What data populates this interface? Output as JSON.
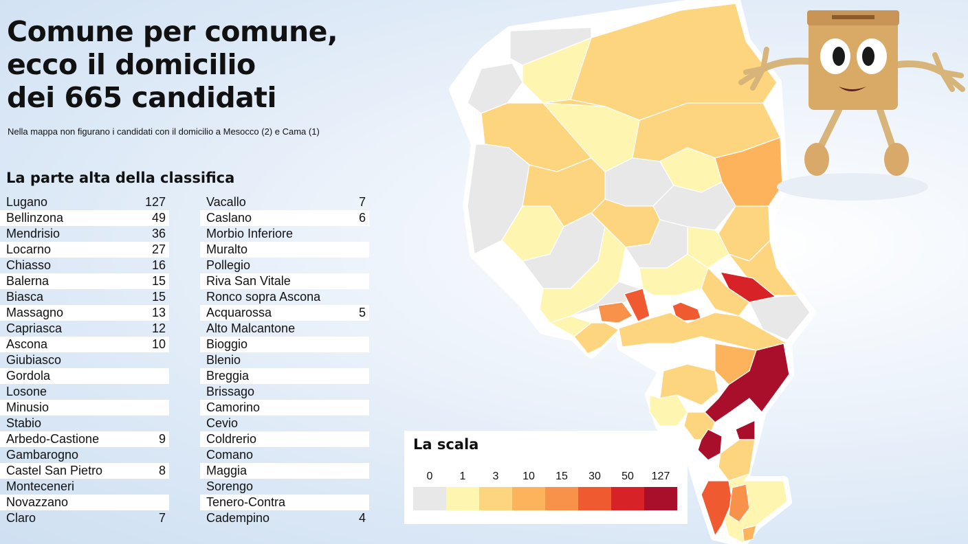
{
  "title_lines": [
    "Comune per comune,",
    "ecco il domicilio",
    "dei 665 candidati"
  ],
  "subtitle": "Nella mappa non figurano i candidati con il domicilio a Mesocco (2) e Cama (1)",
  "ranking_title": "La parte alta della classifica",
  "ranking_left": [
    {
      "name": "Lugano",
      "value": "127"
    },
    {
      "name": "Bellinzona",
      "value": "49"
    },
    {
      "name": "Mendrisio",
      "value": "36"
    },
    {
      "name": "Locarno",
      "value": "27"
    },
    {
      "name": "Chiasso",
      "value": "16"
    },
    {
      "name": "Balerna",
      "value": "15"
    },
    {
      "name": "Biasca",
      "value": "15"
    },
    {
      "name": "Massagno",
      "value": "13"
    },
    {
      "name": "Capriasca",
      "value": "12"
    },
    {
      "name": "Ascona",
      "value": "10"
    },
    {
      "name": "Giubiasco",
      "value": ""
    },
    {
      "name": "Gordola",
      "value": ""
    },
    {
      "name": "Losone",
      "value": ""
    },
    {
      "name": "Minusio",
      "value": ""
    },
    {
      "name": "Stabio",
      "value": ""
    },
    {
      "name": "Arbedo-Castione",
      "value": "9"
    },
    {
      "name": "Gambarogno",
      "value": ""
    },
    {
      "name": "Castel San Pietro",
      "value": "8"
    },
    {
      "name": "Monteceneri",
      "value": ""
    },
    {
      "name": "Novazzano",
      "value": ""
    },
    {
      "name": "Claro",
      "value": "7"
    }
  ],
  "ranking_right": [
    {
      "name": "Vacallo",
      "value": "7"
    },
    {
      "name": "Caslano",
      "value": "6"
    },
    {
      "name": "Morbio Inferiore",
      "value": ""
    },
    {
      "name": "Muralto",
      "value": ""
    },
    {
      "name": "Pollegio",
      "value": ""
    },
    {
      "name": "Riva San Vitale",
      "value": ""
    },
    {
      "name": "Ronco sopra Ascona",
      "value": ""
    },
    {
      "name": "Acquarossa",
      "value": "5"
    },
    {
      "name": "Alto Malcantone",
      "value": ""
    },
    {
      "name": "Bioggio",
      "value": ""
    },
    {
      "name": "Blenio",
      "value": ""
    },
    {
      "name": "Breggia",
      "value": ""
    },
    {
      "name": "Brissago",
      "value": ""
    },
    {
      "name": "Camorino",
      "value": ""
    },
    {
      "name": "Cevio",
      "value": ""
    },
    {
      "name": "Coldrerio",
      "value": ""
    },
    {
      "name": "Comano",
      "value": ""
    },
    {
      "name": "Maggia",
      "value": ""
    },
    {
      "name": "Sorengo",
      "value": ""
    },
    {
      "name": "Tenero-Contra",
      "value": ""
    },
    {
      "name": "Cadempino",
      "value": "4"
    }
  ],
  "legend": {
    "title": "La scala",
    "steps": [
      {
        "label": "0",
        "color": "#e8e8e8"
      },
      {
        "label": "1",
        "color": "#fef6b0"
      },
      {
        "label": "3",
        "color": "#fdd57e"
      },
      {
        "label": "10",
        "color": "#fcb35c"
      },
      {
        "label": "15",
        "color": "#f8914a"
      },
      {
        "label": "30",
        "color": "#f05a31"
      },
      {
        "label": "50",
        "color": "#d72227"
      },
      {
        "label": "127",
        "color": "#a90f2b"
      }
    ]
  },
  "map_colors": {
    "zero": "#e8e8e8",
    "one": "#fef6b0",
    "three": "#fdd57e",
    "ten": "#fcb35c",
    "fifteen": "#f8914a",
    "thirty": "#f05a31",
    "fifty": "#d72227",
    "max": "#a90f2b"
  },
  "mascot_icon": "ballot-box-mascot-icon"
}
